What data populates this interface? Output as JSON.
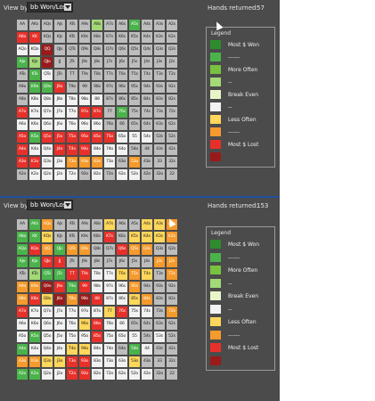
{
  "colors": {
    "panel_bg": "#4b4b4b",
    "gray": "#bdbdbd",
    "white": "#f2f2f2",
    "lime": "#a3d977",
    "green": "#4bb34b",
    "green_dark": "#2e8b2e",
    "pale": "#e8f5c8",
    "yellow": "#ffd75a",
    "orange": "#f59a2c",
    "red": "#e8302a",
    "maroon": "#9a1a1a"
  },
  "legend_colors": [
    "#2e8b2e",
    "#4bb34b",
    "#79c23f",
    "#a3d977",
    "#e8f5c8",
    "#f2f2f2",
    "#ffd75a",
    "#f59a2c",
    "#e8302a",
    "#9a1a1a"
  ],
  "hands": [
    [
      "AA",
      "AKs",
      "AQs",
      "AJs",
      "ATs",
      "A9s",
      "A8s",
      "A7s",
      "A6s",
      "A5s",
      "A4s",
      "A3s",
      "A2s"
    ],
    [
      "AKo",
      "KK",
      "KQs",
      "KJs",
      "KTs",
      "K9s",
      "K8s",
      "K7s",
      "K6s",
      "K5s",
      "K4s",
      "K3s",
      "K2s"
    ],
    [
      "AQo",
      "KQo",
      "QQ",
      "QJs",
      "QTs",
      "Q9s",
      "Q8s",
      "Q7s",
      "Q6s",
      "Q5s",
      "Q4s",
      "Q3s",
      "Q2s"
    ],
    [
      "AJo",
      "KJo",
      "QJo",
      "JJ",
      "JTs",
      "J9s",
      "J8s",
      "J7s",
      "J6s",
      "J5s",
      "J4s",
      "J3s",
      "J2s"
    ],
    [
      "ATo",
      "KTo",
      "QTo",
      "JTo",
      "TT",
      "T9s",
      "T8s",
      "T7s",
      "T6s",
      "T5s",
      "T4s",
      "T3s",
      "T2s"
    ],
    [
      "A9o",
      "K9o",
      "Q9o",
      "J9o",
      "T9o",
      "99",
      "98s",
      "97s",
      "96s",
      "95s",
      "94s",
      "93s",
      "92s"
    ],
    [
      "A8o",
      "K8o",
      "Q8o",
      "J8o",
      "T8o",
      "98o",
      "88",
      "87s",
      "86s",
      "85s",
      "84s",
      "83s",
      "82s"
    ],
    [
      "A7o",
      "K7o",
      "Q7o",
      "J7o",
      "T7o",
      "97o",
      "87o",
      "77",
      "76s",
      "75s",
      "74s",
      "73s",
      "72s"
    ],
    [
      "A6o",
      "K6o",
      "Q6o",
      "J6o",
      "T6o",
      "96o",
      "86o",
      "76o",
      "66",
      "65s",
      "64s",
      "63s",
      "62s"
    ],
    [
      "A5o",
      "K5o",
      "Q5o",
      "J5o",
      "T5o",
      "95o",
      "85o",
      "75o",
      "65o",
      "55",
      "54s",
      "53s",
      "52s"
    ],
    [
      "A4o",
      "K4o",
      "Q4o",
      "J4o",
      "T4o",
      "94o",
      "84o",
      "74o",
      "64o",
      "54o",
      "44",
      "43s",
      "42s"
    ],
    [
      "A3o",
      "K3o",
      "Q3o",
      "J3o",
      "T3o",
      "93o",
      "83o",
      "73o",
      "63o",
      "53o",
      "43o",
      "33",
      "32s"
    ],
    [
      "A2o",
      "K2o",
      "Q2o",
      "J2o",
      "T2o",
      "92o",
      "82o",
      "72o",
      "62o",
      "52o",
      "42o",
      "32o",
      "22"
    ]
  ],
  "top": {
    "view_by_label": "View by:",
    "view_by_value": "bb Won/Lost",
    "hands_returned_label": "Hands returned:",
    "hands_returned_value": "57",
    "legend_title": "Legend",
    "legend_labels": [
      "Most $ Won",
      "------",
      "More Often",
      "--",
      "Break Even",
      "--",
      "Less Often",
      "------",
      "Most $ Lost",
      ""
    ],
    "cells": [
      "ggggg lggmgggg",
      "rrgggggggggggg",
      "wwRgggggggggg",
      "GlRgggggggggg",
      "gGwgggggggggg",
      "gGGrgggggggg",
      "gwwwwwwggggggg",
      "rwwwwrrgGgggg",
      "wwwwwwwgggggg",
      "rGrrrrrrwwwgg",
      "rwwrrrwwwgggg",
      "rrwwooowgoggg",
      "gwwwwgwgwwggg"
    ]
  },
  "bottom": {
    "view_by_label": "View by:",
    "view_by_value": "bb Won/Lost",
    "hands_returned_label": "Hands returned:",
    "hands_returned_value": "153",
    "legend_title": "Legend",
    "legend_labels": [
      "Most $ Won",
      "------",
      "More Often",
      "--",
      "Break Even",
      "--",
      "Less Often",
      "------",
      "Most $ Lost",
      ""
    ],
    "cells": [
      "gGoggggyggyyo",
      "GGyggggrgyyyo",
      "GroGooggroogg",
      "GGrrgggggggoo",
      "glGGrrwwyoygo",
      "ooRrmrwwwoggg",
      "oryRoRrwwyogg",
      "rwwwwwwyrwwgo",
      "wwwwwyrwwgggg",
      "wGwwwwrwwwgwg",
      "GwwwyywwgGwgg",
      "ooyyrrwwwyggg",
      "GGwwrrwwwwwgg"
    ]
  }
}
